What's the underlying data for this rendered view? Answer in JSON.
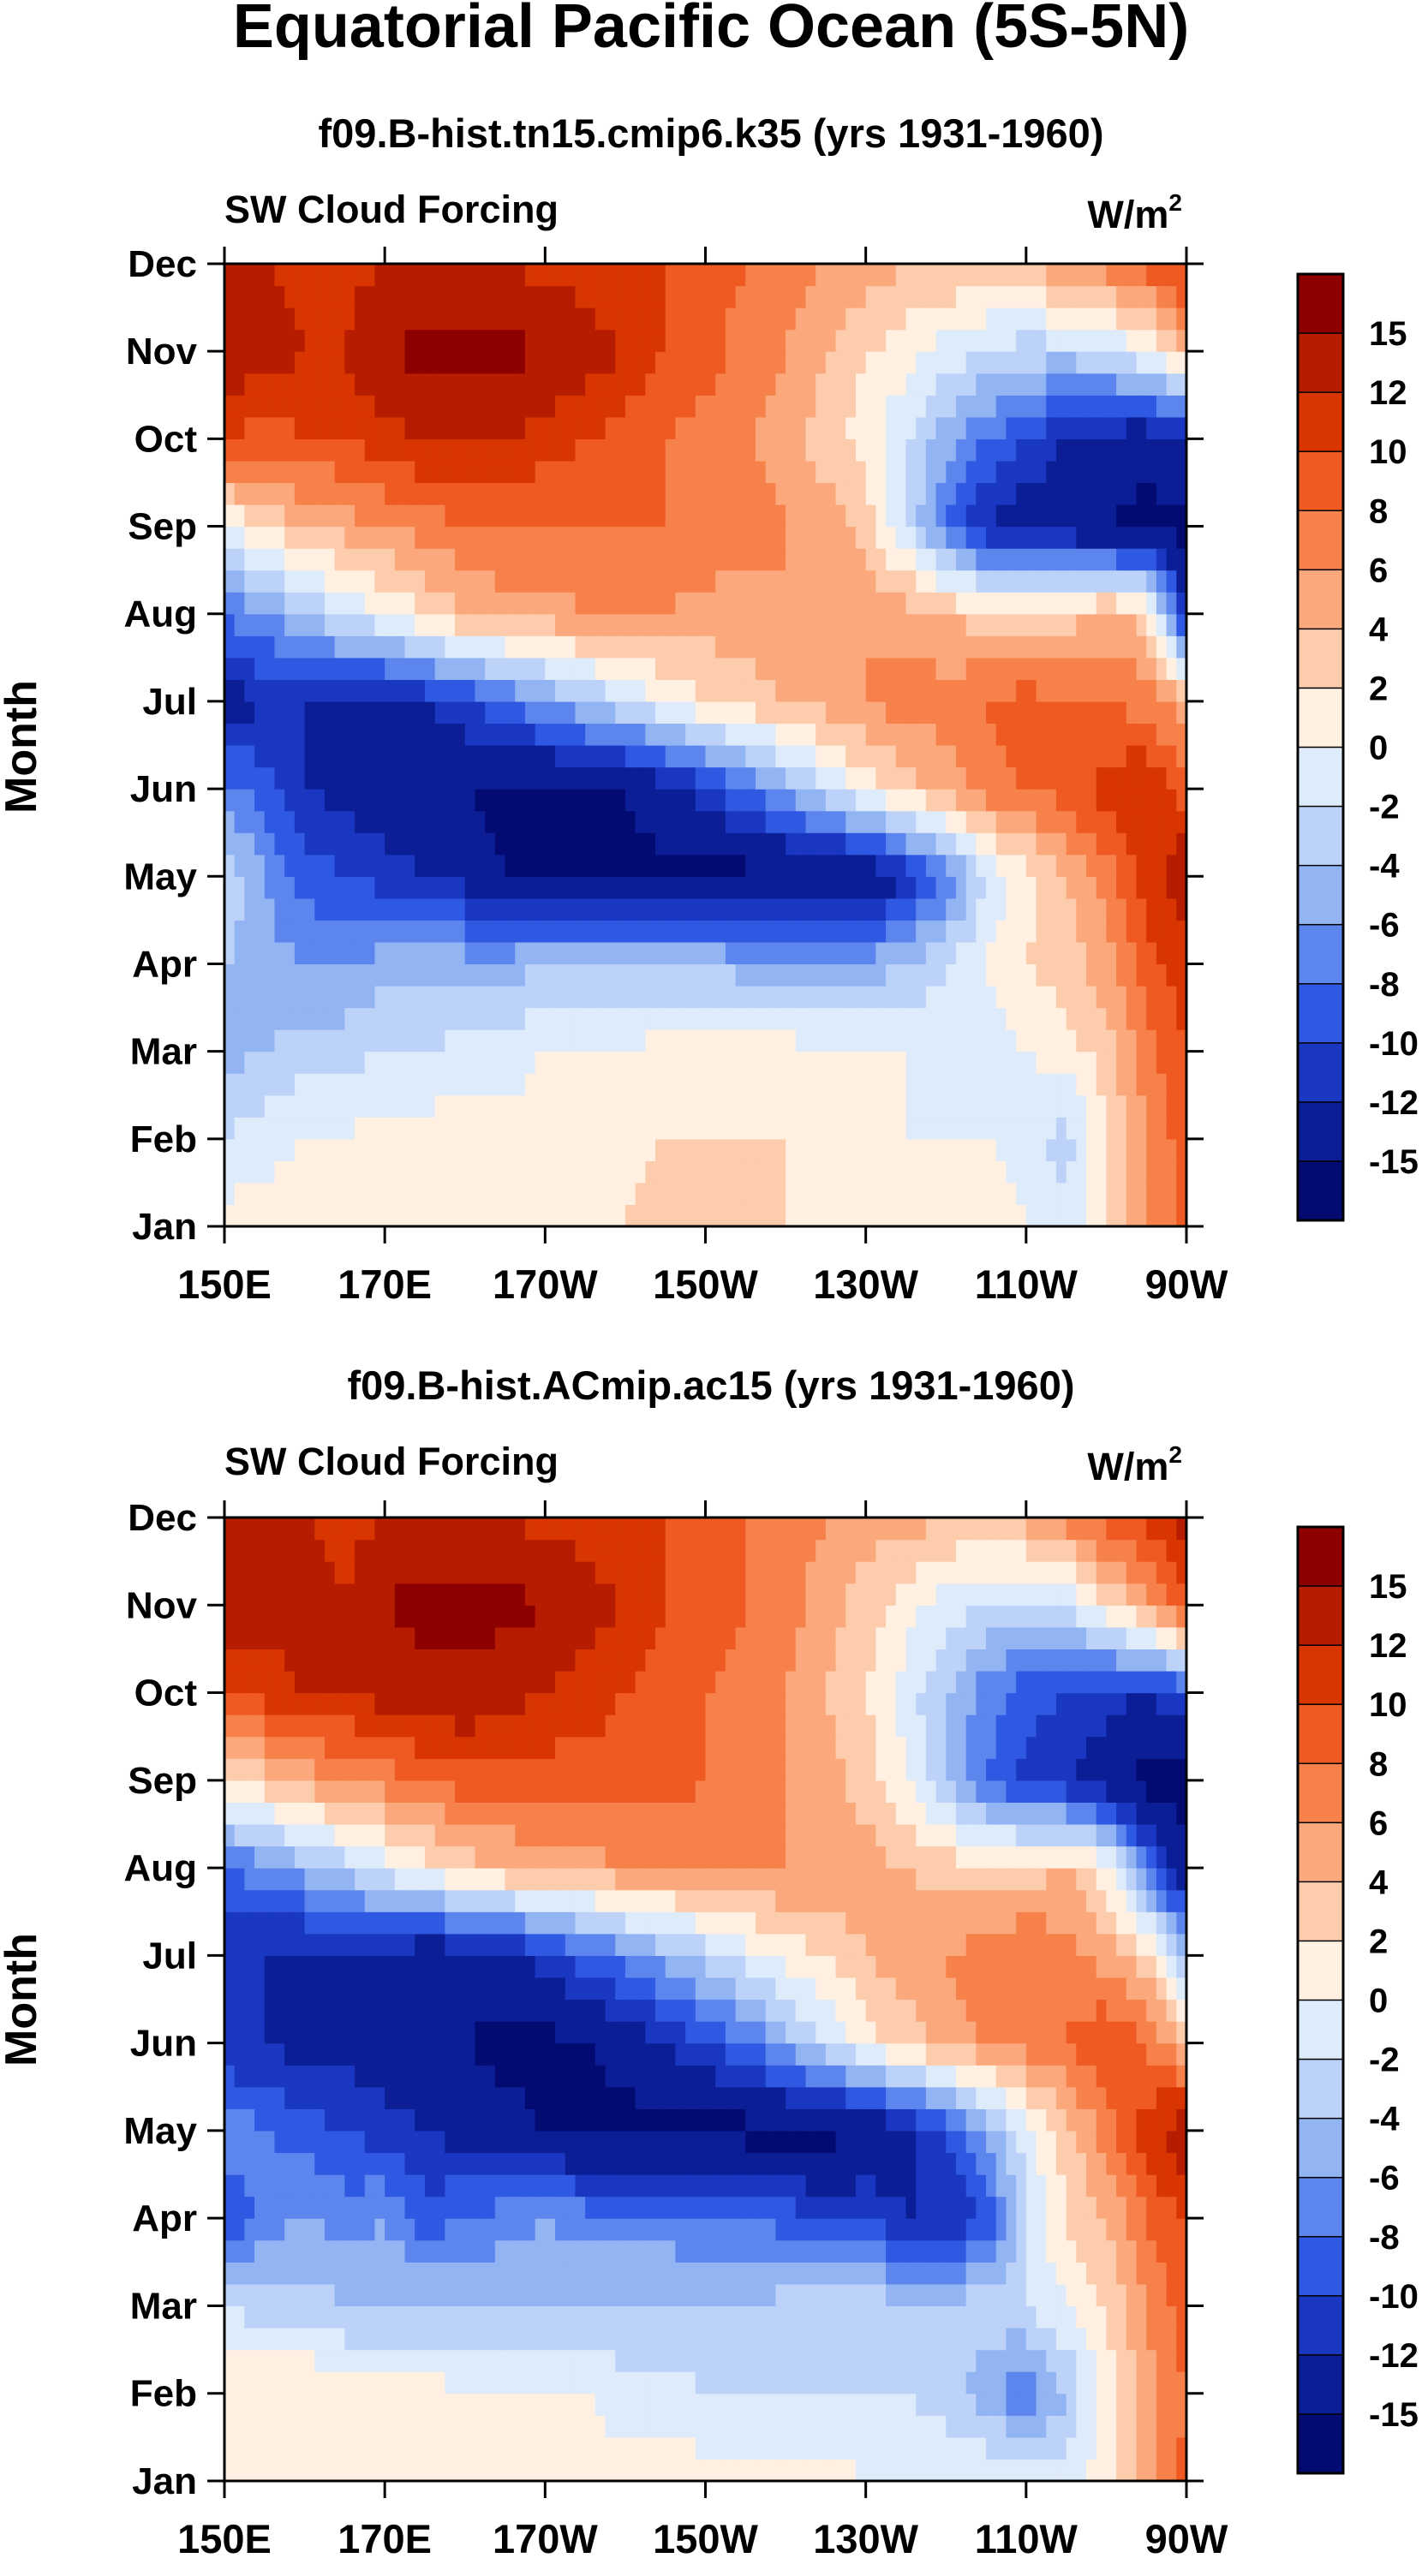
{
  "title": "Equatorial Pacific Ocean (5S-5N)",
  "colorbar": {
    "labels": [
      "15",
      "12",
      "10",
      "8",
      "6",
      "4",
      "2",
      "0",
      "-2",
      "-4",
      "-6",
      "-8",
      "-10",
      "-12",
      "-15"
    ],
    "colors": [
      "#8c0000",
      "#b51c00",
      "#d93500",
      "#ef5a22",
      "#f7814a",
      "#fba97c",
      "#fdccac",
      "#fff0e2",
      "#deebfa",
      "#bcd2f8",
      "#93b4f3",
      "#5c86ee",
      "#2f58e3",
      "#1a37c2",
      "#0c1e96",
      "#030a72"
    ]
  },
  "chart_data": [
    {
      "type": "heatmap",
      "subtitle": "f09.B-hist.tn15.cmip6.k35 (yrs 1931-1960)",
      "left_label": "SW Cloud Forcing",
      "units": "W/m",
      "units_sup": "2",
      "ylabel": "Month",
      "xticks": [
        "150E",
        "170E",
        "170W",
        "150W",
        "130W",
        "110W",
        "90W"
      ],
      "yticks": [
        "Jan",
        "Feb",
        "Mar",
        "Apr",
        "May",
        "Jun",
        "Jul",
        "Aug",
        "Sep",
        "Oct",
        "Nov",
        "Dec"
      ],
      "longitudes": [
        150,
        155,
        160,
        165,
        170,
        175,
        180,
        185,
        190,
        195,
        200,
        205,
        210,
        215,
        220,
        225,
        230,
        235,
        240,
        245,
        250,
        255,
        260,
        265,
        270
      ],
      "months": [
        "Jan",
        "Feb",
        "Mar",
        "Apr",
        "May",
        "Jun",
        "Jul",
        "Aug",
        "Sep",
        "Oct",
        "Nov",
        "Dec"
      ],
      "values": [
        [
          1,
          1,
          2,
          2,
          2,
          2,
          2,
          2,
          2,
          2,
          2,
          3,
          3,
          3,
          2,
          2,
          2,
          2,
          1,
          1,
          0,
          -1,
          2,
          6,
          9
        ],
        [
          -2,
          -1,
          0,
          0,
          1,
          1,
          1,
          1,
          1,
          1,
          1,
          2,
          2,
          2,
          2,
          1,
          1,
          0,
          0,
          0,
          -1,
          -3,
          2,
          6,
          9
        ],
        [
          -5,
          -4,
          -3,
          -3,
          -2,
          -2,
          -1,
          -1,
          0,
          0,
          0,
          1,
          1,
          1,
          1,
          0,
          0,
          0,
          -1,
          -1,
          0,
          1,
          3,
          7,
          10
        ],
        [
          -4,
          -5,
          -6,
          -6,
          -5,
          -5,
          -5,
          -5,
          -4,
          -4,
          -4,
          -4,
          -4,
          -5,
          -5,
          -5,
          -5,
          -4,
          -2,
          0,
          2,
          3,
          5,
          9,
          11
        ],
        [
          -2,
          -6,
          -9,
          -10,
          -11,
          -12,
          -13,
          -15,
          -16,
          -16,
          -16,
          -16,
          -16,
          -16,
          -16,
          -16,
          -15,
          -12,
          -8,
          -2,
          1,
          4,
          7,
          11,
          14
        ],
        [
          -7,
          -9,
          -12,
          -13,
          -14,
          -15,
          -15,
          -16,
          -16,
          -15,
          -15,
          -13,
          -11,
          -8,
          -5,
          -2,
          1,
          3,
          5,
          7,
          8,
          9,
          11,
          12,
          9
        ],
        [
          -14,
          -12,
          -12,
          -12,
          -13,
          -12,
          -10,
          -8,
          -6,
          -4,
          -2,
          0,
          2,
          3,
          4,
          5,
          6,
          7,
          7,
          8,
          9,
          8,
          8,
          7,
          5
        ],
        [
          -8,
          -6,
          -4,
          -2,
          0,
          2,
          4,
          5,
          5,
          6,
          6,
          6,
          5,
          5,
          6,
          6,
          6,
          5,
          4,
          3,
          2,
          3,
          5,
          3,
          -12
        ],
        [
          0,
          2,
          4,
          5,
          6,
          7,
          8,
          8,
          8,
          8,
          8,
          8,
          8,
          7,
          6,
          5,
          3,
          -2,
          -8,
          -12,
          -14,
          -14,
          -15,
          -16,
          -16
        ],
        [
          10,
          9,
          10,
          10,
          11,
          12,
          12,
          12,
          11,
          10,
          9,
          8,
          7,
          6,
          5,
          3,
          1,
          -2,
          -5,
          -8,
          -10,
          -12,
          -13,
          -14,
          -12
        ],
        [
          14,
          13,
          12,
          12,
          15,
          16,
          16,
          16,
          15,
          13,
          12,
          10,
          9,
          7,
          6,
          4,
          2,
          1,
          -1,
          -2,
          -3,
          -3,
          -2,
          0,
          4
        ],
        [
          12,
          12,
          11,
          11,
          12,
          12,
          12,
          12,
          11,
          11,
          10,
          10,
          9,
          8,
          7,
          6,
          5,
          4,
          4,
          3,
          4,
          6,
          7,
          9,
          11
        ]
      ]
    },
    {
      "type": "heatmap",
      "subtitle": "f09.B-hist.ACmip.ac15 (yrs 1931-1960)",
      "left_label": "SW Cloud Forcing",
      "units": "W/m",
      "units_sup": "2",
      "ylabel": "Month",
      "xticks": [
        "150E",
        "170E",
        "170W",
        "150W",
        "130W",
        "110W",
        "90W"
      ],
      "yticks": [
        "Jan",
        "Feb",
        "Mar",
        "Apr",
        "May",
        "Jun",
        "Jul",
        "Aug",
        "Sep",
        "Oct",
        "Nov",
        "Dec"
      ],
      "longitudes": [
        150,
        155,
        160,
        165,
        170,
        175,
        180,
        185,
        190,
        195,
        200,
        205,
        210,
        215,
        220,
        225,
        230,
        235,
        240,
        245,
        250,
        255,
        260,
        265,
        270
      ],
      "months": [
        "Jan",
        "Feb",
        "Mar",
        "Apr",
        "May",
        "Jun",
        "Jul",
        "Aug",
        "Sep",
        "Oct",
        "Nov",
        "Dec"
      ],
      "values": [
        [
          1,
          1,
          1,
          1,
          1,
          1,
          1,
          1,
          1,
          1,
          1,
          1,
          1,
          1,
          1,
          1,
          0,
          0,
          0,
          0,
          0,
          -1,
          1,
          5,
          9
        ],
        [
          2,
          2,
          2,
          1,
          1,
          1,
          0,
          0,
          0,
          0,
          -1,
          -1,
          -2,
          -2,
          -2,
          -2,
          -2,
          -2,
          -3,
          -5,
          -8,
          -4,
          1,
          5,
          8
        ],
        [
          -2,
          -3,
          -3,
          -4,
          -4,
          -4,
          -4,
          -4,
          -4,
          -4,
          -4,
          -4,
          -4,
          -4,
          -3,
          -3,
          -3,
          -3,
          -3,
          -3,
          -2,
          0,
          2,
          6,
          9
        ],
        [
          -10,
          -7,
          -6,
          -7,
          -6,
          -9,
          -8,
          -7,
          -6,
          -7,
          -7,
          -7,
          -8,
          -8,
          -9,
          -10,
          -10,
          -12,
          -12,
          -10,
          -2,
          2,
          4,
          8,
          10
        ],
        [
          -6,
          -8,
          -9,
          -10,
          -11,
          -12,
          -13,
          -14,
          -15,
          -16,
          -16,
          -16,
          -16,
          -16,
          -16,
          -16,
          -15,
          -13,
          -10,
          -6,
          -1,
          3,
          7,
          11,
          14
        ],
        [
          -12,
          -12,
          -13,
          -13,
          -14,
          -15,
          -15,
          -16,
          -16,
          -15,
          -14,
          -12,
          -10,
          -8,
          -5,
          -2,
          1,
          3,
          5,
          6,
          7,
          8,
          10,
          8,
          4
        ],
        [
          -12,
          -12,
          -13,
          -13,
          -13,
          -14,
          -14,
          -13,
          -11,
          -9,
          -7,
          -5,
          -3,
          -1,
          1,
          2,
          4,
          5,
          6,
          7,
          8,
          7,
          5,
          3,
          -4
        ],
        [
          -8,
          -7,
          -5,
          -3,
          -1,
          1,
          3,
          4,
          5,
          5,
          6,
          6,
          6,
          6,
          6,
          6,
          5,
          4,
          3,
          3,
          3,
          4,
          1,
          -8,
          -15
        ],
        [
          2,
          3,
          5,
          6,
          7,
          8,
          9,
          9,
          9,
          9,
          9,
          9,
          8,
          7,
          6,
          5,
          3,
          0,
          -4,
          -8,
          -11,
          -12,
          -14,
          -16,
          -16
        ],
        [
          11,
          11,
          12,
          12,
          13,
          14,
          14,
          13,
          12,
          11,
          10,
          9,
          8,
          7,
          6,
          4,
          2,
          -1,
          -4,
          -7,
          -9,
          -10,
          -11,
          -12,
          -10
        ],
        [
          13,
          13,
          13,
          12,
          15,
          16,
          16,
          16,
          15,
          13,
          12,
          10,
          9,
          8,
          7,
          5,
          3,
          1,
          -1,
          -2,
          -3,
          -2,
          2,
          5,
          10
        ],
        [
          12,
          12,
          12,
          11,
          12,
          13,
          12,
          12,
          11,
          11,
          10,
          10,
          9,
          8,
          7,
          6,
          5,
          5,
          4,
          4,
          5,
          7,
          9,
          11,
          13
        ]
      ]
    }
  ]
}
